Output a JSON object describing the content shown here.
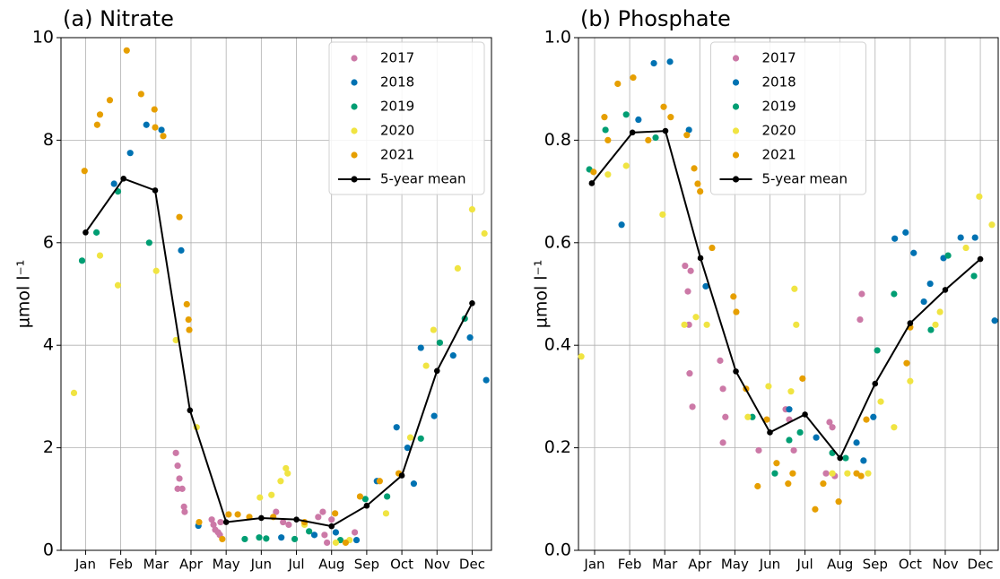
{
  "chart_data": [
    {
      "type": "scatter",
      "title": "(a) Nitrate",
      "ylabel": "µmol l⁻¹",
      "grid": true,
      "legend": "upper right",
      "xlim": [
        0.3,
        12.55
      ],
      "ylim": [
        0,
        10
      ],
      "yticks": [
        0,
        2,
        4,
        6,
        8,
        10
      ],
      "xticks": [
        {
          "value": 1,
          "label": "Jan"
        },
        {
          "value": 2,
          "label": "Feb"
        },
        {
          "value": 3,
          "label": "Mar"
        },
        {
          "value": 4,
          "label": "Apr"
        },
        {
          "value": 5,
          "label": "May"
        },
        {
          "value": 6,
          "label": "Jun"
        },
        {
          "value": 7,
          "label": "Jul"
        },
        {
          "value": 8,
          "label": "Aug"
        },
        {
          "value": 9,
          "label": "Sep"
        },
        {
          "value": 10,
          "label": "Oct"
        },
        {
          "value": 11,
          "label": "Nov"
        },
        {
          "value": 12,
          "label": "Dec"
        }
      ],
      "series": [
        {
          "name": "2017",
          "color": "#cc79a7",
          "x": [
            3.57,
            3.62,
            3.67,
            3.75,
            3.8,
            3.82,
            3.62,
            4.59,
            4.64,
            4.69,
            4.77,
            4.82,
            4.84,
            6.42,
            6.62,
            6.78,
            7.62,
            7.75,
            7.8,
            7.87,
            8.0,
            8.66
          ],
          "values": [
            1.9,
            1.65,
            1.4,
            1.2,
            0.85,
            0.75,
            1.2,
            0.6,
            0.5,
            0.4,
            0.35,
            0.3,
            0.55,
            0.75,
            0.55,
            0.5,
            0.65,
            0.75,
            0.3,
            0.15,
            0.6,
            0.35
          ]
        },
        {
          "name": "2018",
          "color": "#0072b2",
          "x": [
            1.81,
            2.27,
            2.73,
            3.16,
            3.72,
            4.21,
            6.57,
            7.51,
            8.12,
            8.71,
            9.29,
            9.85,
            10.16,
            10.34,
            10.54,
            10.92,
            11.46,
            11.94,
            12.4
          ],
          "values": [
            7.15,
            7.75,
            8.3,
            8.2,
            5.85,
            0.48,
            0.25,
            0.3,
            0.35,
            0.2,
            1.35,
            2.4,
            2.0,
            1.3,
            3.95,
            2.62,
            3.8,
            4.15,
            3.32
          ]
        },
        {
          "name": "2019",
          "color": "#009e73",
          "x": [
            0.9,
            1.31,
            1.92,
            2.81,
            5.53,
            5.94,
            6.14,
            6.95,
            7.36,
            8.25,
            8.96,
            9.58,
            10.54,
            11.08,
            11.79
          ],
          "values": [
            5.65,
            6.2,
            7.0,
            6.0,
            0.22,
            0.25,
            0.23,
            0.22,
            0.37,
            0.2,
            1.0,
            1.05,
            2.18,
            4.05,
            4.52
          ]
        },
        {
          "name": "2020",
          "color": "#f0e442",
          "x": [
            0.67,
            1.41,
            1.92,
            3.01,
            3.57,
            4.16,
            5.96,
            6.29,
            6.55,
            6.7,
            6.75,
            7.23,
            8.12,
            8.51,
            9.55,
            10.24,
            10.69,
            10.9,
            11.59,
            12.0,
            12.35
          ],
          "values": [
            3.07,
            5.75,
            5.17,
            5.45,
            4.1,
            2.4,
            1.03,
            1.08,
            1.35,
            1.6,
            1.5,
            0.5,
            0.15,
            0.2,
            0.72,
            2.2,
            3.6,
            4.3,
            5.5,
            6.65,
            6.18
          ]
        },
        {
          "name": "2021",
          "color": "#e69f00",
          "x": [
            0.97,
            1.33,
            1.41,
            1.69,
            2.17,
            2.58,
            2.96,
            2.98,
            3.21,
            3.67,
            3.88,
            3.93,
            3.95,
            4.23,
            4.89,
            5.07,
            5.33,
            5.66,
            6.34,
            7.23,
            8.1,
            8.4,
            8.81,
            9.37,
            9.91
          ],
          "values": [
            7.4,
            8.3,
            8.5,
            8.78,
            9.75,
            8.9,
            8.6,
            8.25,
            8.08,
            6.5,
            4.8,
            4.5,
            4.3,
            0.55,
            0.22,
            0.7,
            0.7,
            0.65,
            0.65,
            0.55,
            0.72,
            0.15,
            1.05,
            1.35,
            1.5
          ]
        },
        {
          "name": "5-year mean",
          "color": "#000000",
          "line": true,
          "x": [
            1.0,
            2.08,
            2.98,
            3.97,
            5.0,
            6.0,
            7.0,
            8.0,
            9.0,
            10.0,
            11.0,
            12.0
          ],
          "values": [
            6.2,
            7.25,
            7.02,
            2.73,
            0.55,
            0.63,
            0.6,
            0.47,
            0.87,
            1.46,
            3.5,
            4.82
          ]
        }
      ]
    },
    {
      "type": "scatter",
      "title": "(b) Phosphate",
      "ylabel": "µmol l⁻¹",
      "grid": true,
      "legend": "upper center",
      "xlim": [
        0.54,
        12.51
      ],
      "ylim": [
        0,
        1
      ],
      "yticks": [
        {
          "value": 0,
          "label": "0.0"
        },
        {
          "value": 0.2,
          "label": "0.2"
        },
        {
          "value": 0.4,
          "label": "0.4"
        },
        {
          "value": 0.6,
          "label": "0.6"
        },
        {
          "value": 0.8,
          "label": "0.8"
        },
        {
          "value": 1,
          "label": "1.0"
        }
      ],
      "xticks": [
        {
          "value": 1,
          "label": "Jan"
        },
        {
          "value": 2,
          "label": "Feb"
        },
        {
          "value": 3,
          "label": "Mar"
        },
        {
          "value": 4,
          "label": "Apr"
        },
        {
          "value": 5,
          "label": "May"
        },
        {
          "value": 6,
          "label": "Jun"
        },
        {
          "value": 7,
          "label": "Jul"
        },
        {
          "value": 8,
          "label": "Aug"
        },
        {
          "value": 9,
          "label": "Sep"
        },
        {
          "value": 10,
          "label": "Oct"
        },
        {
          "value": 11,
          "label": "Nov"
        },
        {
          "value": 12,
          "label": "Dec"
        }
      ],
      "series": [
        {
          "name": "2017",
          "color": "#cc79a7",
          "x": [
            3.58,
            3.66,
            3.74,
            3.69,
            3.71,
            3.79,
            4.58,
            4.66,
            4.73,
            4.66,
            5.68,
            6.45,
            6.55,
            6.68,
            7.6,
            7.7,
            7.78,
            7.85,
            8.57,
            8.62
          ],
          "values": [
            0.555,
            0.505,
            0.545,
            0.44,
            0.345,
            0.28,
            0.37,
            0.315,
            0.26,
            0.21,
            0.195,
            0.275,
            0.255,
            0.195,
            0.15,
            0.25,
            0.24,
            0.145,
            0.45,
            0.5
          ]
        },
        {
          "name": "2018",
          "color": "#0072b2",
          "x": [
            1.77,
            2.25,
            2.69,
            3.15,
            3.69,
            4.17,
            6.55,
            7.32,
            8.47,
            8.67,
            8.95,
            9.56,
            9.87,
            10.1,
            10.39,
            10.57,
            10.95,
            11.44,
            11.85,
            12.41
          ],
          "values": [
            0.635,
            0.84,
            0.95,
            0.953,
            0.82,
            0.515,
            0.275,
            0.22,
            0.21,
            0.175,
            0.26,
            0.608,
            0.62,
            0.58,
            0.485,
            0.52,
            0.57,
            0.61,
            0.61,
            0.448
          ]
        },
        {
          "name": "2019",
          "color": "#009e73",
          "x": [
            0.85,
            1.31,
            1.9,
            2.74,
            5.5,
            6.14,
            6.55,
            6.86,
            7.78,
            8.16,
            9.06,
            9.54,
            10.59,
            11.08,
            11.82
          ],
          "values": [
            0.743,
            0.82,
            0.85,
            0.805,
            0.26,
            0.15,
            0.215,
            0.23,
            0.19,
            0.18,
            0.39,
            0.5,
            0.43,
            0.575,
            0.535
          ]
        },
        {
          "name": "2020",
          "color": "#f0e442",
          "x": [
            0.62,
            1.38,
            1.9,
            2.94,
            3.56,
            3.89,
            4.2,
            5.37,
            5.96,
            6.6,
            6.7,
            6.75,
            7.78,
            8.21,
            8.8,
            9.16,
            9.54,
            10.0,
            10.72,
            10.85,
            11.59,
            11.97,
            12.33
          ],
          "values": [
            0.378,
            0.733,
            0.75,
            0.655,
            0.44,
            0.455,
            0.44,
            0.26,
            0.32,
            0.31,
            0.51,
            0.44,
            0.15,
            0.15,
            0.15,
            0.29,
            0.24,
            0.33,
            0.44,
            0.465,
            0.59,
            0.69,
            0.635
          ]
        },
        {
          "name": "2021",
          "color": "#e69f00",
          "x": [
            0.97,
            1.28,
            1.38,
            1.66,
            2.1,
            2.53,
            2.97,
            3.17,
            3.63,
            3.84,
            3.94,
            4.01,
            4.35,
            4.96,
            5.04,
            5.32,
            5.65,
            5.91,
            6.19,
            6.52,
            6.65,
            6.93,
            7.29,
            7.52,
            7.96,
            8.47,
            8.6,
            8.75,
            9.9,
            10.0
          ],
          "values": [
            0.738,
            0.845,
            0.8,
            0.91,
            0.922,
            0.8,
            0.865,
            0.845,
            0.81,
            0.745,
            0.715,
            0.7,
            0.59,
            0.495,
            0.465,
            0.315,
            0.125,
            0.255,
            0.17,
            0.13,
            0.15,
            0.335,
            0.08,
            0.13,
            0.095,
            0.15,
            0.145,
            0.255,
            0.365,
            0.435
          ]
        },
        {
          "name": "5-year mean",
          "color": "#000000",
          "line": true,
          "x": [
            0.92,
            2.08,
            3.02,
            4.02,
            5.03,
            6.0,
            7.0,
            8.0,
            9.0,
            10.0,
            11.0,
            12.0
          ],
          "values": [
            0.716,
            0.815,
            0.818,
            0.57,
            0.349,
            0.23,
            0.265,
            0.18,
            0.325,
            0.443,
            0.508,
            0.568
          ]
        }
      ]
    }
  ]
}
